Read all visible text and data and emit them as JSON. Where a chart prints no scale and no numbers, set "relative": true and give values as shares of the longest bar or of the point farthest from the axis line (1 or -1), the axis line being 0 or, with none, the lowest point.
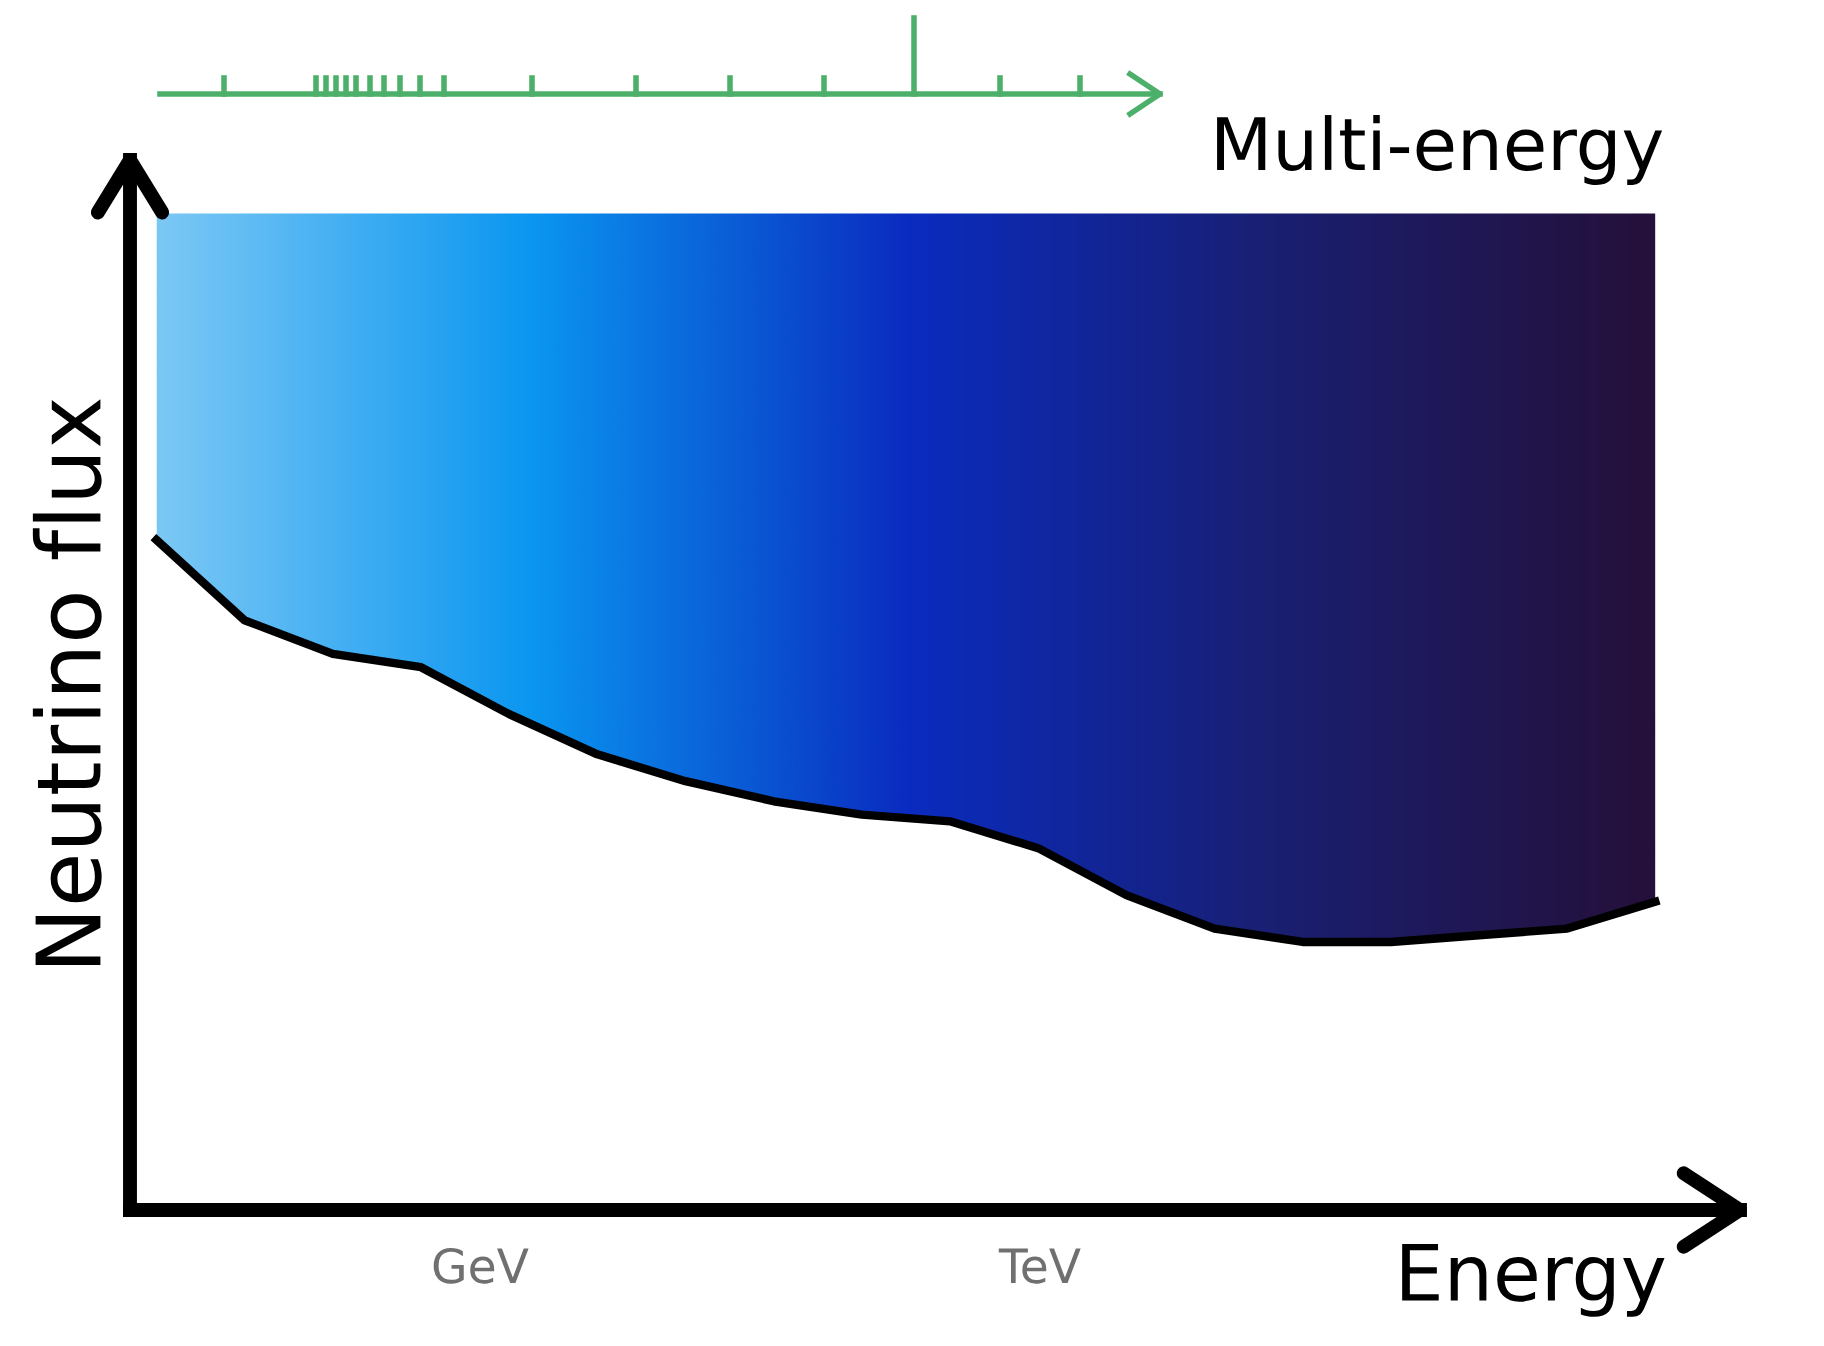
{
  "chart_data": {
    "type": "line",
    "relative": true,
    "xlabel": "Energy",
    "ylabel": "Neutrino flux",
    "categories": [
      null,
      null,
      null,
      null,
      null,
      null,
      null,
      null,
      null,
      null,
      null,
      null,
      null,
      null,
      null,
      null,
      null,
      null
    ],
    "series": [
      {
        "color": "#000000",
        "values": [
          1.0,
          0.88,
          0.83,
          0.81,
          0.74,
          0.68,
          0.64,
          0.61,
          0.59,
          0.58,
          0.54,
          0.47,
          0.42,
          0.4,
          0.4,
          0.41,
          0.42,
          0.46
        ]
      }
    ],
    "annotations": [
      "GeV",
      "TeV",
      "Multi-energy"
    ],
    "marker": "none",
    "line_style": "solid",
    "grid": false
  }
}
